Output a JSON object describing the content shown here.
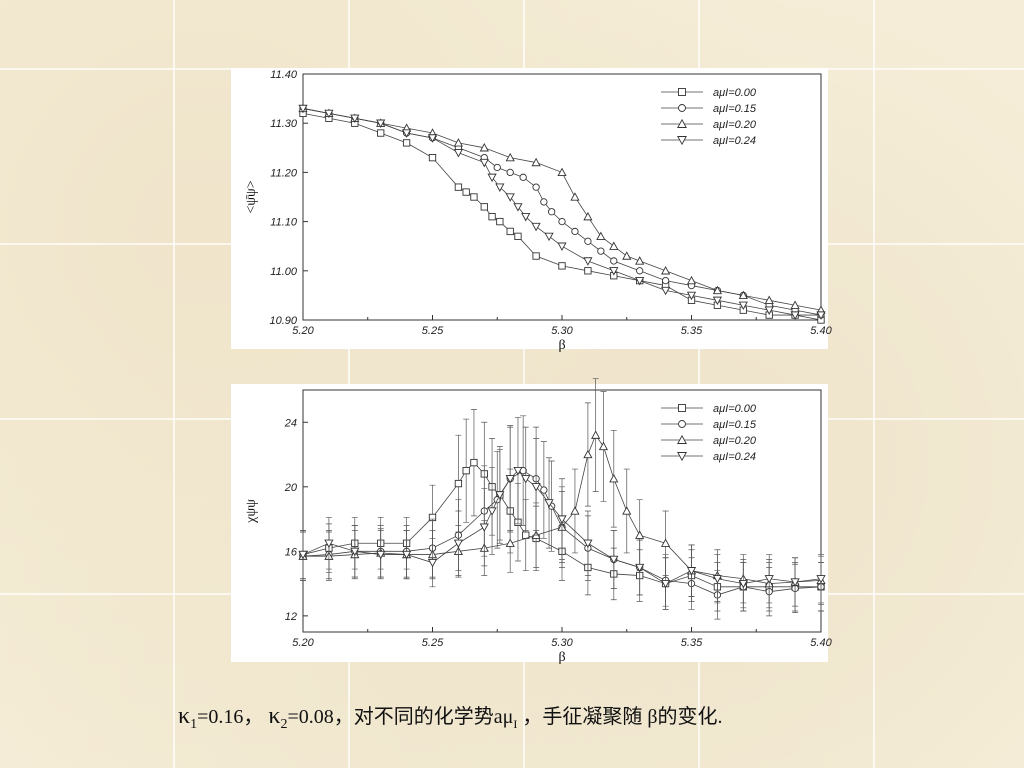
{
  "chart_data": [
    {
      "type": "line",
      "ylabel": "<ψ̄ψ>",
      "xlabel": "β",
      "xlim": [
        5.2,
        5.4
      ],
      "ylim": [
        10.9,
        11.4
      ],
      "x_ticks": [
        "5.20",
        "5.25",
        "5.30",
        "5.35",
        "5.40"
      ],
      "y_ticks": [
        "11.40",
        "11.30",
        "11.20",
        "11.10",
        "11.00",
        "10.90"
      ],
      "legend_position": "top-right",
      "series": [
        {
          "name": "aμI=0.00",
          "marker": "square",
          "x": [
            5.2,
            5.21,
            5.22,
            5.23,
            5.24,
            5.25,
            5.26,
            5.263,
            5.266,
            5.27,
            5.273,
            5.276,
            5.28,
            5.283,
            5.29,
            5.3,
            5.31,
            5.32,
            5.33,
            5.34,
            5.35,
            5.36,
            5.37,
            5.38,
            5.39,
            5.4
          ],
          "y": [
            11.32,
            11.31,
            11.3,
            11.28,
            11.26,
            11.23,
            11.17,
            11.16,
            11.15,
            11.13,
            11.11,
            11.1,
            11.08,
            11.07,
            11.03,
            11.01,
            11.0,
            10.99,
            10.98,
            10.97,
            10.94,
            10.93,
            10.92,
            10.91,
            10.91,
            10.9
          ]
        },
        {
          "name": "aμI=0.15",
          "marker": "circle",
          "x": [
            5.2,
            5.21,
            5.22,
            5.23,
            5.24,
            5.25,
            5.26,
            5.27,
            5.275,
            5.28,
            5.285,
            5.29,
            5.293,
            5.296,
            5.3,
            5.305,
            5.31,
            5.315,
            5.32,
            5.33,
            5.34,
            5.35,
            5.36,
            5.37,
            5.38,
            5.39,
            5.4
          ],
          "y": [
            11.33,
            11.32,
            11.31,
            11.3,
            11.28,
            11.27,
            11.25,
            11.23,
            11.21,
            11.2,
            11.19,
            11.17,
            11.14,
            11.12,
            11.1,
            11.08,
            11.06,
            11.04,
            11.02,
            11.0,
            10.98,
            10.97,
            10.96,
            10.95,
            10.93,
            10.92,
            10.91
          ]
        },
        {
          "name": "aμI=0.20",
          "marker": "triangle-up",
          "x": [
            5.2,
            5.21,
            5.22,
            5.23,
            5.24,
            5.25,
            5.26,
            5.27,
            5.28,
            5.29,
            5.3,
            5.305,
            5.31,
            5.315,
            5.32,
            5.325,
            5.33,
            5.34,
            5.35,
            5.36,
            5.37,
            5.38,
            5.39,
            5.4
          ],
          "y": [
            11.33,
            11.32,
            11.31,
            11.3,
            11.29,
            11.28,
            11.26,
            11.25,
            11.23,
            11.22,
            11.2,
            11.15,
            11.11,
            11.07,
            11.05,
            11.03,
            11.02,
            11.0,
            10.98,
            10.96,
            10.95,
            10.94,
            10.93,
            10.92
          ]
        },
        {
          "name": "aμI=0.24",
          "marker": "triangle-down",
          "x": [
            5.2,
            5.21,
            5.22,
            5.23,
            5.24,
            5.25,
            5.26,
            5.27,
            5.273,
            5.276,
            5.28,
            5.283,
            5.286,
            5.29,
            5.295,
            5.3,
            5.31,
            5.32,
            5.33,
            5.34,
            5.35,
            5.36,
            5.37,
            5.38,
            5.39,
            5.4
          ],
          "y": [
            11.33,
            11.32,
            11.31,
            11.3,
            11.28,
            11.27,
            11.24,
            11.22,
            11.19,
            11.17,
            11.15,
            11.13,
            11.11,
            11.09,
            11.07,
            11.05,
            11.02,
            11.0,
            10.98,
            10.96,
            10.95,
            10.94,
            10.93,
            10.92,
            10.91,
            10.91
          ]
        }
      ]
    },
    {
      "type": "line",
      "ylabel": "χψψ",
      "xlabel": "β",
      "xlim": [
        5.2,
        5.4
      ],
      "ylim": [
        11,
        26
      ],
      "x_ticks": [
        "5.20",
        "5.25",
        "5.30",
        "5.35",
        "5.40"
      ],
      "y_ticks": [
        "24",
        "20",
        "16",
        "12"
      ],
      "legend_position": "top-right",
      "error_bars": true,
      "series": [
        {
          "name": "aμI=0.00",
          "marker": "square",
          "x": [
            5.2,
            5.21,
            5.22,
            5.23,
            5.24,
            5.25,
            5.26,
            5.263,
            5.266,
            5.27,
            5.273,
            5.276,
            5.28,
            5.283,
            5.286,
            5.29,
            5.3,
            5.31,
            5.32,
            5.33,
            5.34,
            5.35,
            5.36,
            5.37,
            5.38,
            5.39,
            5.4
          ],
          "y": [
            15.8,
            16.2,
            16.5,
            16.5,
            16.5,
            18.1,
            20.2,
            21.0,
            21.5,
            20.8,
            20.0,
            19.5,
            18.5,
            17.8,
            17.0,
            16.8,
            16.0,
            15.0,
            14.6,
            14.5,
            14.0,
            14.5,
            13.8,
            13.8,
            13.8,
            13.8,
            13.8
          ],
          "err": [
            1.5,
            1.5,
            1.6,
            1.6,
            1.6,
            2.0,
            3.0,
            3.2,
            3.3,
            3.2,
            3.0,
            2.8,
            2.6,
            2.4,
            2.2,
            2.0,
            1.8,
            1.7,
            1.6,
            1.6,
            1.6,
            1.6,
            1.5,
            1.5,
            1.5,
            1.5,
            1.5
          ]
        },
        {
          "name": "aμI=0.15",
          "marker": "circle",
          "x": [
            5.2,
            5.21,
            5.22,
            5.23,
            5.24,
            5.25,
            5.26,
            5.27,
            5.275,
            5.28,
            5.285,
            5.29,
            5.293,
            5.296,
            5.3,
            5.31,
            5.32,
            5.33,
            5.34,
            5.35,
            5.36,
            5.37,
            5.38,
            5.39,
            5.4
          ],
          "y": [
            15.7,
            15.8,
            16.0,
            16.0,
            16.0,
            16.2,
            17.0,
            18.5,
            19.2,
            20.5,
            21.0,
            20.5,
            19.8,
            18.8,
            17.5,
            16.2,
            15.5,
            15.0,
            14.2,
            14.0,
            13.3,
            13.8,
            13.5,
            13.7,
            13.8
          ],
          "err": [
            1.5,
            1.5,
            1.6,
            1.6,
            1.6,
            1.8,
            2.2,
            2.8,
            3.0,
            3.3,
            3.4,
            3.2,
            3.0,
            2.8,
            2.5,
            2.0,
            1.8,
            1.7,
            1.6,
            1.6,
            1.5,
            1.5,
            1.5,
            1.5,
            1.5
          ]
        },
        {
          "name": "aμI=0.20",
          "marker": "triangle-up",
          "x": [
            5.2,
            5.21,
            5.22,
            5.23,
            5.24,
            5.25,
            5.26,
            5.27,
            5.28,
            5.29,
            5.3,
            5.305,
            5.31,
            5.313,
            5.316,
            5.32,
            5.325,
            5.33,
            5.34,
            5.35,
            5.36,
            5.37,
            5.38,
            5.39,
            5.4
          ],
          "y": [
            15.7,
            15.7,
            15.8,
            15.9,
            15.8,
            15.8,
            16.0,
            16.2,
            16.5,
            17.0,
            17.5,
            18.5,
            22.0,
            23.2,
            22.5,
            20.5,
            18.5,
            17.0,
            16.5,
            14.8,
            14.5,
            14.3,
            14.0,
            14.1,
            14.2
          ],
          "err": [
            1.5,
            1.5,
            1.5,
            1.5,
            1.5,
            1.5,
            1.6,
            1.7,
            1.8,
            2.0,
            2.2,
            2.6,
            3.2,
            3.5,
            3.4,
            3.0,
            2.6,
            2.2,
            2.0,
            1.6,
            1.6,
            1.5,
            1.5,
            1.5,
            1.5
          ]
        },
        {
          "name": "aμI=0.24",
          "marker": "triangle-down",
          "x": [
            5.2,
            5.21,
            5.22,
            5.23,
            5.24,
            5.25,
            5.26,
            5.27,
            5.273,
            5.276,
            5.28,
            5.283,
            5.286,
            5.29,
            5.295,
            5.3,
            5.31,
            5.32,
            5.33,
            5.34,
            5.35,
            5.36,
            5.37,
            5.38,
            5.39,
            5.4
          ],
          "y": [
            15.8,
            16.5,
            16.0,
            15.8,
            15.8,
            15.3,
            16.5,
            17.5,
            18.5,
            19.5,
            20.5,
            21.0,
            20.5,
            20.0,
            19.0,
            18.0,
            16.5,
            15.5,
            15.0,
            14.0,
            14.8,
            14.3,
            14.0,
            14.3,
            14.1,
            14.3
          ],
          "err": [
            1.5,
            1.6,
            1.6,
            1.5,
            1.5,
            1.5,
            2.0,
            2.4,
            2.7,
            3.0,
            3.2,
            3.3,
            3.2,
            3.0,
            2.8,
            2.5,
            2.0,
            1.8,
            1.7,
            1.6,
            1.6,
            1.5,
            1.5,
            1.5,
            1.5,
            1.5
          ]
        }
      ]
    }
  ],
  "caption": {
    "kappa1_symbol": "κ",
    "kappa1_sub": "1",
    "kappa1_value": "=0.16，",
    "kappa2_symbol": "κ",
    "kappa2_sub": "2",
    "kappa2_value": "=0.08，对不同的化学势",
    "mu_text": "aμ",
    "mu_sub": "I",
    "rest": " ，手征凝聚随 β的变化."
  }
}
